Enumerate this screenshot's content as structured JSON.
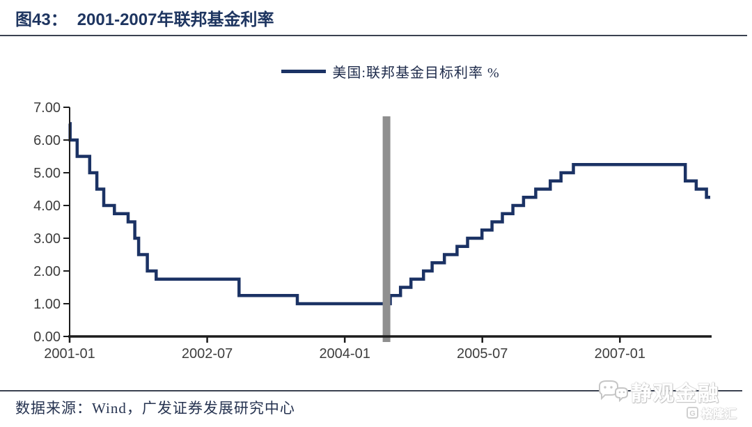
{
  "header": {
    "figure_label": "图43：",
    "title": "2001-2007年联邦基金利率"
  },
  "legend": {
    "series_label": "美国:联邦基金目标利率 %"
  },
  "chart_data": {
    "type": "line",
    "subtype": "step",
    "title": "2001-2007年联邦基金利率",
    "series_name": "美国:联邦基金目标利率 %",
    "unit": "%",
    "ylim": [
      0,
      7
    ],
    "grid": false,
    "legend_position": "top-center",
    "x_start": "2001-01",
    "x_end": "2008-01",
    "x_total_months": 84,
    "x_ticks": [
      {
        "label": "2001-01",
        "month": 0
      },
      {
        "label": "2002-07",
        "month": 18
      },
      {
        "label": "2004-01",
        "month": 36
      },
      {
        "label": "2005-07",
        "month": 54
      },
      {
        "label": "2007-01",
        "month": 72
      }
    ],
    "y_ticks": [
      {
        "label": "0.00",
        "value": 0
      },
      {
        "label": "1.00",
        "value": 1
      },
      {
        "label": "2.00",
        "value": 2
      },
      {
        "label": "3.00",
        "value": 3
      },
      {
        "label": "4.00",
        "value": 4
      },
      {
        "label": "5.00",
        "value": 5
      },
      {
        "label": "6.00",
        "value": 6
      },
      {
        "label": "7.00",
        "value": 7
      }
    ],
    "rate_changes": [
      {
        "date": "2001-01-01",
        "rate": 6.5
      },
      {
        "date": "2001-01-03",
        "rate": 6.0
      },
      {
        "date": "2001-01-31",
        "rate": 5.5
      },
      {
        "date": "2001-03-20",
        "rate": 5.0
      },
      {
        "date": "2001-04-18",
        "rate": 4.5
      },
      {
        "date": "2001-05-15",
        "rate": 4.0
      },
      {
        "date": "2001-06-27",
        "rate": 3.75
      },
      {
        "date": "2001-08-21",
        "rate": 3.5
      },
      {
        "date": "2001-09-17",
        "rate": 3.0
      },
      {
        "date": "2001-10-02",
        "rate": 2.5
      },
      {
        "date": "2001-11-06",
        "rate": 2.0
      },
      {
        "date": "2001-12-11",
        "rate": 1.75
      },
      {
        "date": "2002-11-06",
        "rate": 1.25
      },
      {
        "date": "2003-06-25",
        "rate": 1.0
      },
      {
        "date": "2004-06-30",
        "rate": 1.25
      },
      {
        "date": "2004-08-10",
        "rate": 1.5
      },
      {
        "date": "2004-09-21",
        "rate": 1.75
      },
      {
        "date": "2004-11-10",
        "rate": 2.0
      },
      {
        "date": "2004-12-14",
        "rate": 2.25
      },
      {
        "date": "2005-02-02",
        "rate": 2.5
      },
      {
        "date": "2005-03-22",
        "rate": 2.75
      },
      {
        "date": "2005-05-03",
        "rate": 3.0
      },
      {
        "date": "2005-06-30",
        "rate": 3.25
      },
      {
        "date": "2005-08-09",
        "rate": 3.5
      },
      {
        "date": "2005-09-20",
        "rate": 3.75
      },
      {
        "date": "2005-11-01",
        "rate": 4.0
      },
      {
        "date": "2005-12-13",
        "rate": 4.25
      },
      {
        "date": "2006-01-31",
        "rate": 4.5
      },
      {
        "date": "2006-03-28",
        "rate": 4.75
      },
      {
        "date": "2006-05-10",
        "rate": 5.0
      },
      {
        "date": "2006-06-29",
        "rate": 5.25
      },
      {
        "date": "2007-09-18",
        "rate": 4.75
      },
      {
        "date": "2007-10-31",
        "rate": 4.5
      },
      {
        "date": "2007-12-11",
        "rate": 4.25
      }
    ],
    "marker_line_date": "2004-06-15",
    "colors": {
      "line": "#1b3264",
      "marker_line": "#8f8f8f",
      "axis": "#1c1c1c",
      "tick_label": "#3d3d3d"
    }
  },
  "footer": {
    "source": "数据来源：Wind，广发证券发展研究中心"
  },
  "watermark": {
    "brand": "静观金融",
    "logo_letter": "G",
    "logo_text": "格隆汇"
  }
}
